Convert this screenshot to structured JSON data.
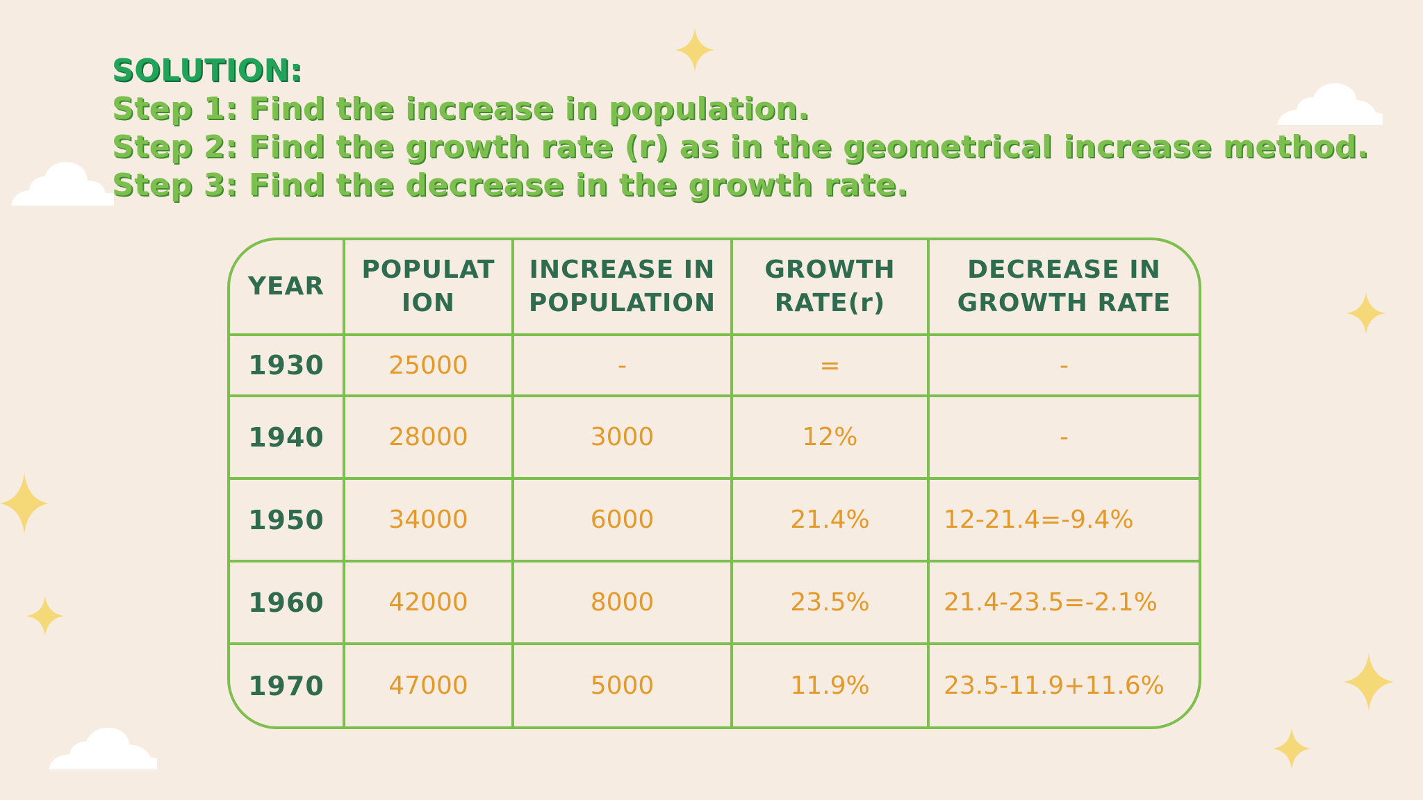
{
  "heading": {
    "title": "SOLUTION:",
    "steps": [
      "Step 1: Find the increase in population.",
      "Step 2: Find the growth rate (r) as in the geometrical increase method.",
      "Step 3: Find the decrease in the growth rate."
    ]
  },
  "table": {
    "headers": [
      [
        "YEAR"
      ],
      [
        "POPULAT",
        "ION"
      ],
      [
        "INCREASE IN",
        "POPULATION"
      ],
      [
        "GROWTH",
        "RATE(r)"
      ],
      [
        "DECREASE IN",
        "GROWTH RATE"
      ]
    ],
    "rows": [
      [
        "1930",
        "25000",
        "-",
        "=",
        "-"
      ],
      [
        "1940",
        "28000",
        "3000",
        "12%",
        "-"
      ],
      [
        "1950",
        "34000",
        "6000",
        "21.4%",
        "12-21.4=-9.4%"
      ],
      [
        "1960",
        "42000",
        "8000",
        "23.5%",
        "21.4-23.5=-2.1%"
      ],
      [
        "1970",
        "47000",
        "5000",
        "11.9%",
        "23.5-11.9+11.6%"
      ]
    ]
  },
  "colors": {
    "background": "#f6ece1",
    "accent_green": "#7cbf4e",
    "title_green": "#21a35a",
    "header_text": "#2f6b4e",
    "value_orange": "#e39a2b",
    "sparkle": "#f5d877",
    "cloud": "#ffffff"
  },
  "decorations": [
    "cloud-icon",
    "sparkle-icon"
  ]
}
